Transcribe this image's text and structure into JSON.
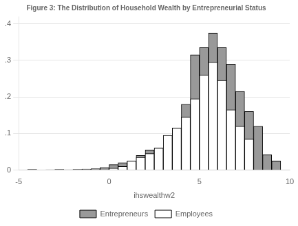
{
  "chart_data": {
    "type": "histogram",
    "title": "Figure 3: The Distribution of Household Wealth by Entrepreneurial Status",
    "xlabel": "ihswealthw2",
    "xlim": [
      -5,
      10
    ],
    "ylim": [
      0,
      0.42
    ],
    "xticks": [
      -5,
      0,
      5,
      10
    ],
    "yticks": [
      0,
      {
        "value": 0.1,
        "label": ".1"
      },
      {
        "value": 0.2,
        "label": ".2"
      },
      {
        "value": 0.3,
        "label": ".3"
      },
      {
        "value": 0.4,
        "label": ".4"
      }
    ],
    "grid": "y",
    "legend": "bottom",
    "series": [
      {
        "name": "Entrepreneurs",
        "color": "#999999",
        "bins": [
          -4.5,
          -4.0,
          -3.5,
          -3.0,
          -2.5,
          -2.0,
          -1.5,
          -1.0,
          -0.5,
          0.0,
          0.5,
          1.0,
          1.5,
          2.0,
          2.5,
          3.0,
          3.5,
          4.0,
          4.5,
          5.0,
          5.5,
          6.0,
          6.5,
          7.0,
          7.5,
          8.0,
          8.5,
          9.0,
          9.5
        ],
        "values": [
          0.002,
          0.0,
          0.001,
          0.002,
          0.001,
          0.002,
          0.003,
          0.004,
          0.007,
          0.015,
          0.02,
          0.025,
          0.04,
          0.055,
          0.06,
          0.075,
          0.115,
          0.18,
          0.315,
          0.335,
          0.375,
          0.335,
          0.29,
          0.215,
          0.16,
          0.12,
          0.042,
          0.025
        ]
      },
      {
        "name": "Employees",
        "color": "#ffffff",
        "bins": [
          0.0,
          0.5,
          1.0,
          1.5,
          2.0,
          2.5,
          3.0,
          3.5,
          4.0,
          4.5,
          5.0,
          5.5,
          6.0,
          6.5,
          7.0,
          7.5,
          8.0
        ],
        "values": [
          0.005,
          0.01,
          0.025,
          0.035,
          0.045,
          0.06,
          0.095,
          0.115,
          0.145,
          0.195,
          0.26,
          0.295,
          0.245,
          0.165,
          0.12,
          0.085
        ]
      }
    ]
  }
}
